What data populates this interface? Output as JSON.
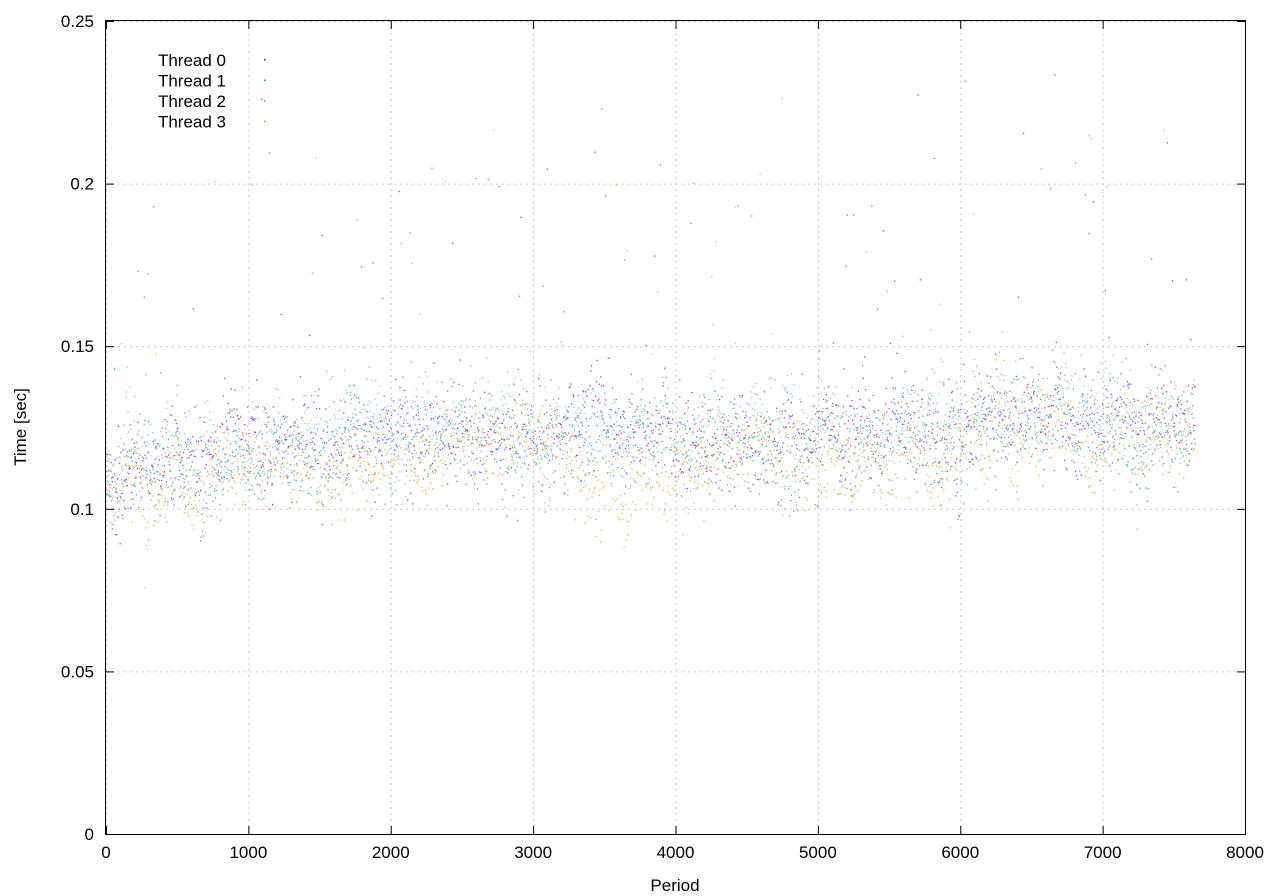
{
  "chart_data": {
    "type": "scatter",
    "xlabel": "Period",
    "ylabel": "Time [sec]",
    "xlim": [
      0,
      8000
    ],
    "ylim": [
      0,
      0.25
    ],
    "xticks": [
      0,
      1000,
      2000,
      3000,
      4000,
      5000,
      6000,
      7000,
      8000
    ],
    "yticks": [
      0,
      0.05,
      0.1,
      0.15,
      0.2,
      0.25
    ],
    "xtick_labels": [
      "0",
      "1000",
      "2000",
      "3000",
      "4000",
      "5000",
      "6000",
      "7000",
      "8000"
    ],
    "ytick_labels": [
      "0",
      "0.05",
      "0.1",
      "0.15",
      "0.2",
      "0.25"
    ],
    "grid": true,
    "legend_position": "top-left",
    "point_count_per_series": 7650,
    "series": [
      {
        "name": "Thread 0",
        "color": "#9400d3",
        "trend": {
          "x": [
            0,
            500,
            1000,
            1500,
            2000,
            2500,
            3000,
            3500,
            4000,
            4500,
            5000,
            5500,
            6000,
            6500,
            7000,
            7650
          ],
          "y": [
            0.112,
            0.116,
            0.12,
            0.121,
            0.121,
            0.123,
            0.123,
            0.124,
            0.123,
            0.124,
            0.124,
            0.124,
            0.125,
            0.126,
            0.126,
            0.126
          ]
        }
      },
      {
        "name": "Thread 1",
        "color": "#009e73",
        "trend": {
          "x": [
            0,
            500,
            1000,
            1500,
            2000,
            2500,
            3000,
            3500,
            4000,
            4500,
            5000,
            5500,
            6000,
            6500,
            7000,
            7650
          ],
          "y": [
            0.109,
            0.112,
            0.116,
            0.118,
            0.118,
            0.121,
            0.12,
            0.121,
            0.118,
            0.121,
            0.12,
            0.121,
            0.122,
            0.124,
            0.123,
            0.124
          ]
        }
      },
      {
        "name": "Thread 2",
        "color": "#56b4e9",
        "trend": {
          "x": [
            0,
            500,
            1000,
            1500,
            2000,
            2500,
            3000,
            3500,
            4000,
            4500,
            5000,
            5500,
            6000,
            6500,
            7000,
            7650
          ],
          "y": [
            0.113,
            0.116,
            0.12,
            0.122,
            0.122,
            0.125,
            0.124,
            0.126,
            0.124,
            0.126,
            0.126,
            0.127,
            0.127,
            0.129,
            0.128,
            0.128
          ]
        }
      },
      {
        "name": "Thread 3",
        "color": "#e69f00",
        "trend": {
          "x": [
            0,
            500,
            1000,
            1500,
            2000,
            2500,
            3000,
            3500,
            4000,
            4500,
            5000,
            5500,
            6000,
            6500,
            7000,
            7650
          ],
          "y": [
            0.103,
            0.108,
            0.115,
            0.114,
            0.112,
            0.12,
            0.118,
            0.113,
            0.112,
            0.12,
            0.114,
            0.118,
            0.116,
            0.123,
            0.121,
            0.122
          ]
        }
      }
    ]
  }
}
